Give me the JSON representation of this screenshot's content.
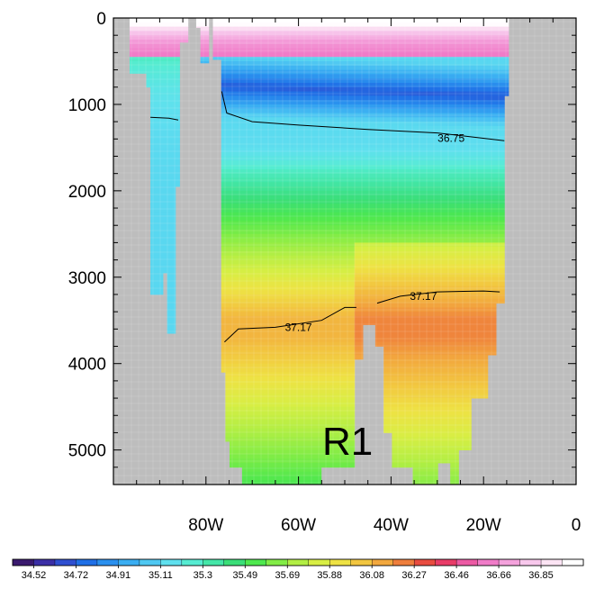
{
  "chart_data": {
    "type": "heatmap",
    "title": "",
    "xlabel": "",
    "ylabel": "",
    "x_axis": {
      "range": [
        -100,
        0
      ],
      "ticks": [
        -80,
        -60,
        -40,
        -20,
        0
      ],
      "tick_labels": [
        "80W",
        "60W",
        "40W",
        "20W",
        "0"
      ]
    },
    "y_axis": {
      "range": [
        0,
        5400
      ],
      "inverted": true,
      "ticks": [
        0,
        1000,
        2000,
        3000,
        4000,
        5000
      ],
      "tick_labels": [
        "0",
        "1000",
        "2000",
        "3000",
        "4000",
        "5000"
      ]
    },
    "grid": false,
    "missing_color": "#bdbdbd",
    "panel_label": "R1",
    "colorbar": {
      "placement": "bottom",
      "labels": [
        "34.52",
        "34.72",
        "34.91",
        "35.11",
        "35.3",
        "35.49",
        "35.69",
        "35.88",
        "36.08",
        "36.27",
        "36.46",
        "36.66",
        "36.85"
      ],
      "colors": [
        "#3a1a6e",
        "#3b2fa6",
        "#2f4fd0",
        "#1f6fe6",
        "#2a90ee",
        "#3aaef2",
        "#4fc8f2",
        "#5fe0ee",
        "#56ecd2",
        "#44e6a8",
        "#3ade78",
        "#4ee84e",
        "#82ec46",
        "#b2ee44",
        "#d8ee44",
        "#eee244",
        "#f2c640",
        "#f2a83e",
        "#ee7e3c",
        "#e84c40",
        "#e83c68",
        "#ec5aa4",
        "#f07cc8",
        "#f4a2dc",
        "#f8c8ec",
        "#fce4f4",
        "#ffffff"
      ]
    },
    "contours": [
      {
        "label": "36.75",
        "points": [
          [
            -76.6,
            850
          ],
          [
            -75.5,
            1100
          ],
          [
            -70,
            1200
          ],
          [
            -60,
            1240
          ],
          [
            -45,
            1290
          ],
          [
            -30,
            1330
          ],
          [
            -15.5,
            1420
          ]
        ],
        "label_at": [
          -27,
          1400
        ]
      },
      {
        "label": "36.75",
        "points": [
          [
            -92,
            1150
          ],
          [
            -88,
            1160
          ],
          [
            -86,
            1180
          ]
        ]
      },
      {
        "label": "37.17",
        "points": [
          [
            -76,
            3750
          ],
          [
            -73,
            3600
          ],
          [
            -65,
            3580
          ],
          [
            -55,
            3500
          ],
          [
            -50,
            3350
          ],
          [
            -47.5,
            3350
          ]
        ],
        "label_at": [
          -60,
          3590
        ]
      },
      {
        "label": "37.17",
        "points": [
          [
            -43,
            3300
          ],
          [
            -38,
            3220
          ],
          [
            -30,
            3170
          ],
          [
            -20,
            3160
          ],
          [
            -16.5,
            3170
          ]
        ],
        "label_at": [
          -33,
          3230
        ]
      }
    ]
  }
}
